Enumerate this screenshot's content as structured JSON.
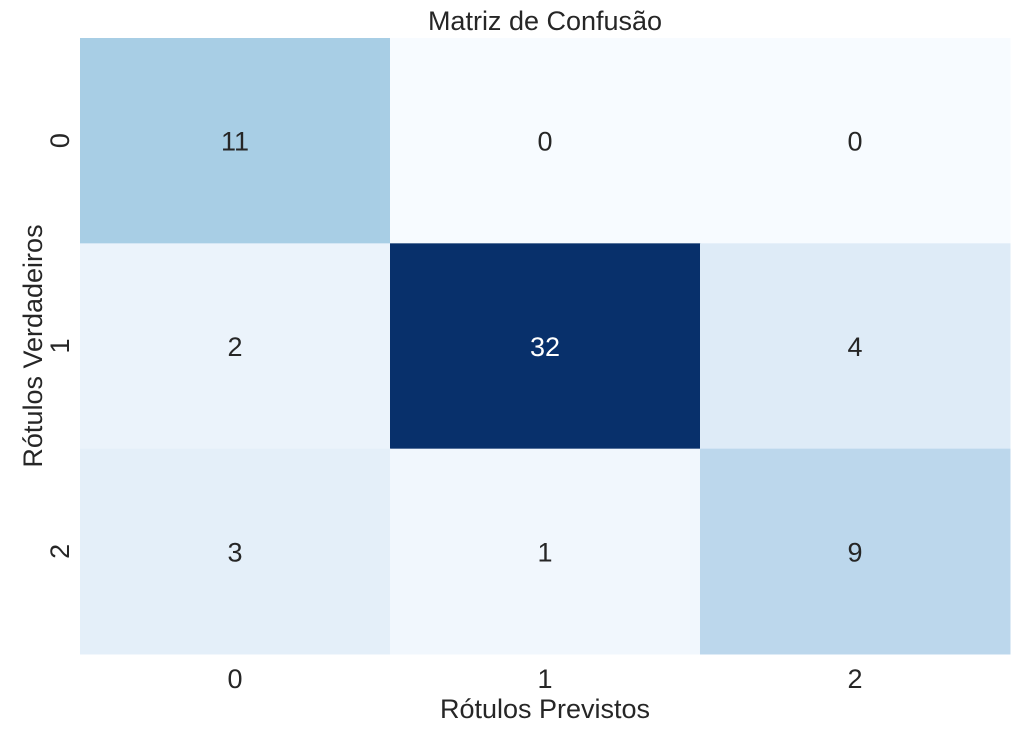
{
  "chart_data": {
    "type": "heatmap",
    "title": "Matriz de Confusão",
    "xlabel": "Rótulos Previstos",
    "ylabel": "Rótulos Verdadeiros",
    "x_categories": [
      "0",
      "1",
      "2"
    ],
    "y_categories": [
      "0",
      "1",
      "2"
    ],
    "values": [
      [
        11,
        0,
        0
      ],
      [
        2,
        32,
        4
      ],
      [
        3,
        1,
        9
      ]
    ],
    "annotations": true,
    "colormap": "Blues",
    "colorbar": false,
    "grid": false
  }
}
